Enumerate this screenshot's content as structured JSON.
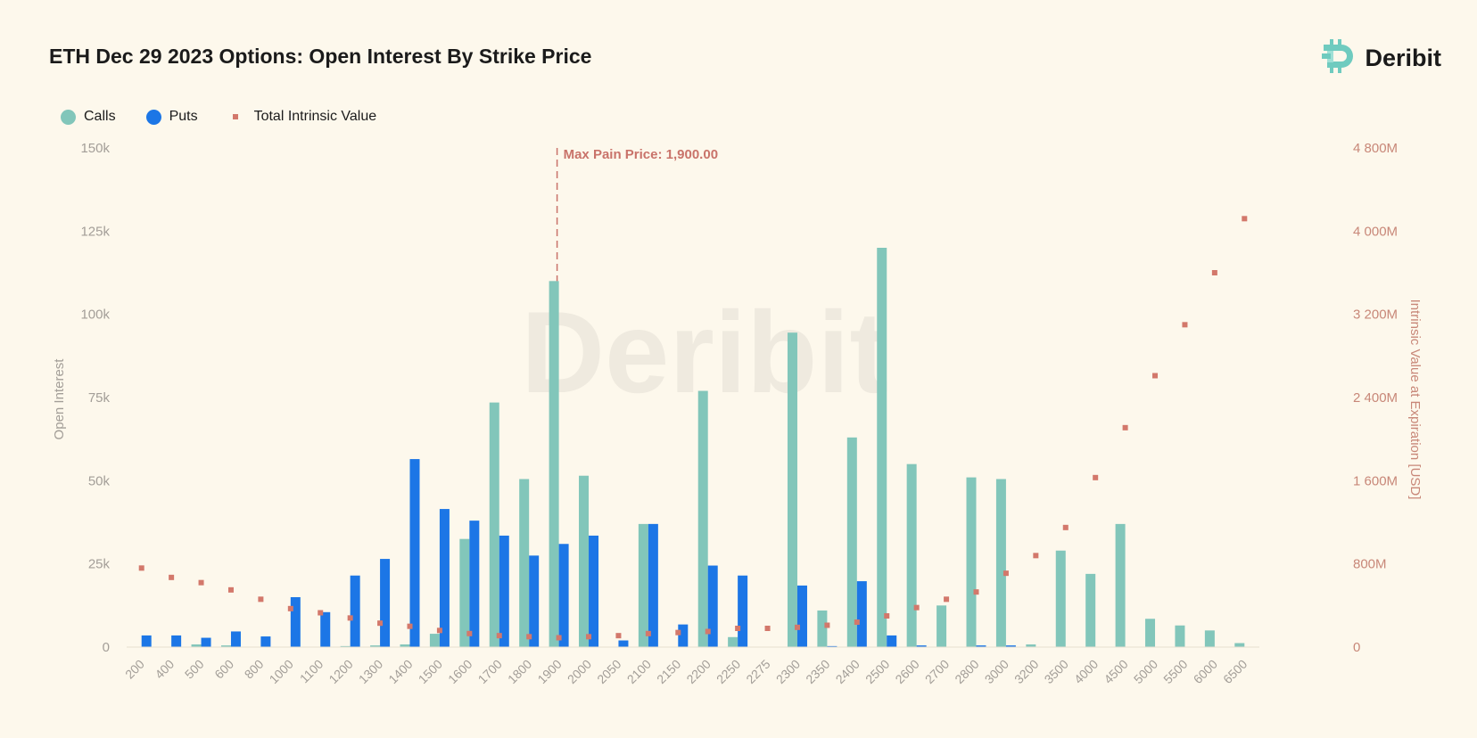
{
  "header": {
    "title": "ETH Dec 29 2023 Options: Open Interest By Strike Price"
  },
  "logo": {
    "text": "Deribit",
    "icon": "deribit-logo-icon",
    "watermark_text": "Deribit"
  },
  "legend": {
    "calls": {
      "label": "Calls",
      "color": "#82c6ba"
    },
    "puts": {
      "label": "Puts",
      "color": "#1c76e6"
    },
    "intrinsic": {
      "label": "Total Intrinsic Value",
      "color": "#d3786b"
    }
  },
  "chart_data": {
    "type": "bar",
    "title": "ETH Dec 29 2023 Options: Open Interest By Strike Price",
    "xlabel": "",
    "ylabel": "Open Interest",
    "y2label": "Intrinsic Value at Expiration [USD]",
    "ylim": [
      0,
      150000
    ],
    "y2lim": [
      0,
      4800
    ],
    "y_ticks": [
      "0",
      "25k",
      "50k",
      "75k",
      "100k",
      "125k",
      "150k"
    ],
    "y2_ticks": [
      "0",
      "800M",
      "1 600M",
      "2 400M",
      "3 200M",
      "4 000M",
      "4 800M"
    ],
    "categories": [
      "200",
      "400",
      "500",
      "600",
      "800",
      "1000",
      "1100",
      "1200",
      "1300",
      "1400",
      "1500",
      "1600",
      "1700",
      "1800",
      "1900",
      "2000",
      "2050",
      "2100",
      "2150",
      "2200",
      "2250",
      "2275",
      "2300",
      "2350",
      "2400",
      "2500",
      "2600",
      "2700",
      "2800",
      "3000",
      "3200",
      "3500",
      "4000",
      "4500",
      "5000",
      "5500",
      "6000",
      "6500"
    ],
    "series": [
      {
        "name": "Calls",
        "type": "bar",
        "axis": "left",
        "values": [
          0,
          0,
          800,
          500,
          0,
          0,
          0,
          300,
          500,
          800,
          4000,
          32500,
          73500,
          50500,
          110000,
          51500,
          0,
          37000,
          0,
          77000,
          3000,
          0,
          94500,
          11000,
          63000,
          120000,
          55000,
          12500,
          51000,
          50500,
          800,
          29000,
          22000,
          37000,
          8500,
          6500,
          5000,
          1200
        ]
      },
      {
        "name": "Puts",
        "type": "bar",
        "axis": "left",
        "values": [
          3500,
          3500,
          2800,
          4700,
          3200,
          15000,
          10500,
          21500,
          26500,
          56500,
          41500,
          38000,
          33500,
          27500,
          31000,
          33500,
          2000,
          37000,
          6800,
          24500,
          21500,
          0,
          18500,
          300,
          19800,
          3500,
          500,
          0,
          500,
          500,
          0,
          0,
          0,
          0,
          0,
          0,
          0,
          0
        ]
      },
      {
        "name": "Total Intrinsic Value",
        "type": "scatter",
        "axis": "right",
        "values": [
          760,
          670,
          620,
          550,
          460,
          370,
          330,
          280,
          230,
          200,
          160,
          130,
          110,
          100,
          90,
          100,
          110,
          130,
          140,
          150,
          180,
          180,
          190,
          210,
          240,
          300,
          380,
          460,
          530,
          710,
          880,
          1150,
          1630,
          2110,
          2610,
          3100,
          3600,
          4120
        ]
      }
    ],
    "annotation": {
      "label": "Max Pain Price: 1,900.00",
      "category": "1900"
    }
  }
}
